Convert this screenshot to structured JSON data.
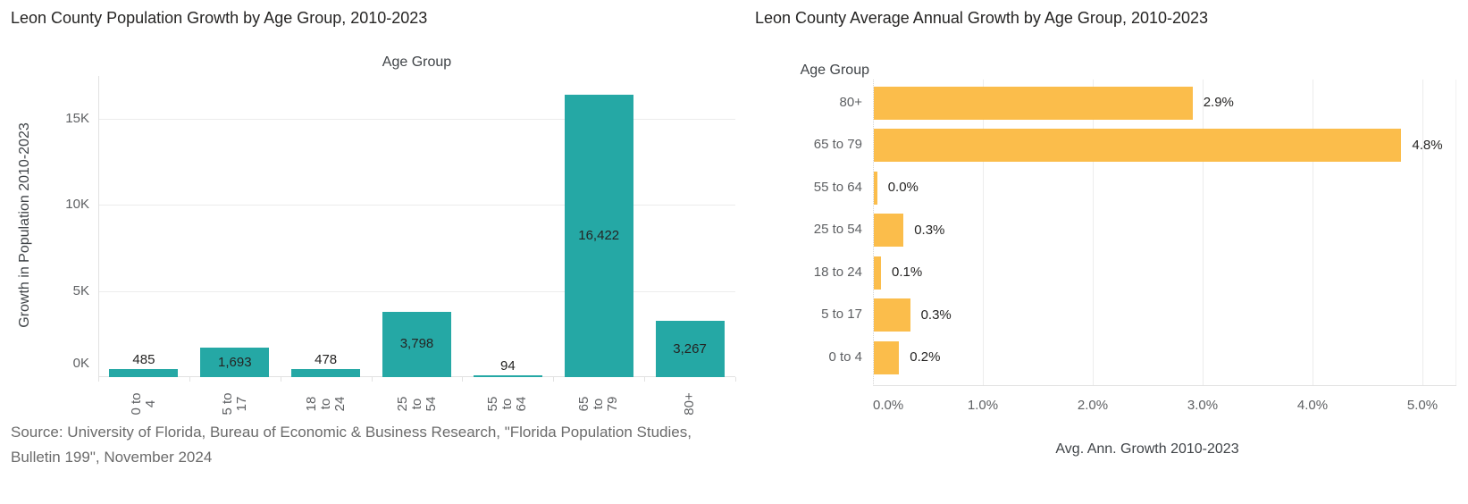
{
  "source_note": "Source: University of Florida, Bureau of Economic & Business Research, \"Florida Population Studies, Bulletin 199\", November 2024",
  "colors": {
    "teal_bar": "#25A8A5",
    "orange_bar": "#FBBD4B",
    "title_text": "#252423",
    "axis_title_text": "#3F4347",
    "tick_text": "#5E6063",
    "gridline": "#ECECEC",
    "axis_line": "#E2E2E2",
    "source_text": "#6B6B6B"
  },
  "chart_data": [
    {
      "type": "bar",
      "orientation": "vertical",
      "title": "Leon County Population Growth by Age Group, 2010-2023",
      "xlabel": "Age Group",
      "ylabel": "Growth in Population 2010-2023",
      "categories": [
        "0 to 4",
        "5 to 17",
        "18 to 24",
        "25 to 54",
        "55 to 64",
        "65 to 79",
        "80+"
      ],
      "category_display_lines": [
        "0 to\n4",
        "5 to\n17",
        "18\nto\n24",
        "25\nto\n54",
        "55\nto\n64",
        "65\nto\n79",
        "80+"
      ],
      "values": [
        485,
        1693,
        478,
        3798,
        94,
        16422,
        3267
      ],
      "data_labels": [
        "485",
        "1,693",
        "478",
        "3,798",
        "94",
        "16,422",
        "3,267"
      ],
      "label_placement": [
        "outside",
        "inside",
        "outside",
        "inside",
        "outside",
        "inside",
        "inside"
      ],
      "y_tick_values": [
        0,
        5000,
        10000,
        15000
      ],
      "y_tick_labels": [
        "0K",
        "5K",
        "10K",
        "15K"
      ],
      "ylim": [
        0,
        17500
      ],
      "grid": "horizontal",
      "legend": "none",
      "bar_color": "#25A8A5"
    },
    {
      "type": "bar",
      "orientation": "horizontal",
      "title": "Leon County Average Annual Growth by Age Group, 2010-2023",
      "xlabel": "Avg. Ann. Growth 2010-2023",
      "ylabel": "Age Group",
      "categories": [
        "80+",
        "65 to 79",
        "55 to 64",
        "25 to 54",
        "18 to 24",
        "5 to 17",
        "0 to 4"
      ],
      "values": [
        2.9,
        4.8,
        0.0,
        0.3,
        0.1,
        0.3,
        0.2
      ],
      "render_values": [
        2.9,
        4.8,
        0.03,
        0.27,
        0.065,
        0.33,
        0.23
      ],
      "data_labels": [
        "2.9%",
        "4.8%",
        "0.0%",
        "0.3%",
        "0.1%",
        "0.3%",
        "0.2%"
      ],
      "x_tick_values": [
        0,
        1,
        2,
        3,
        4,
        5
      ],
      "x_tick_labels": [
        "0.0%",
        "1.0%",
        "2.0%",
        "3.0%",
        "4.0%",
        "5.0%"
      ],
      "xlim": [
        0,
        5.3
      ],
      "grid": "vertical",
      "legend": "none",
      "bar_color": "#FBBD4B"
    }
  ]
}
